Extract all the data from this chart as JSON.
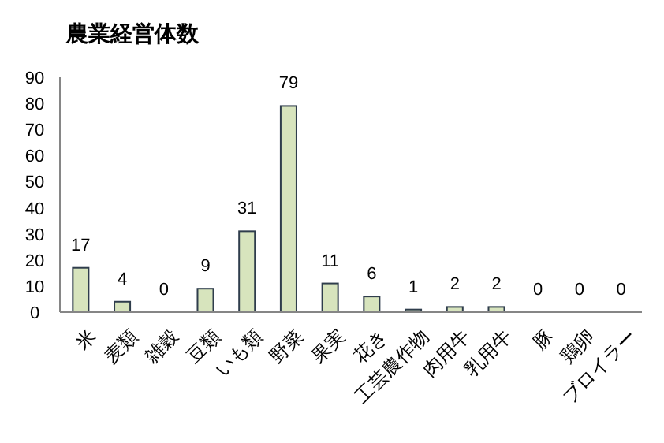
{
  "chart_data": {
    "type": "bar",
    "title": "農業経営体数",
    "categories": [
      "米",
      "麦類",
      "雑穀",
      "豆類",
      "いも類",
      "野菜",
      "果実",
      "花き",
      "工芸農作物",
      "肉用牛",
      "乳用牛",
      "豚",
      "鶏卵",
      "ブロイラー"
    ],
    "values": [
      17,
      4,
      0,
      9,
      31,
      79,
      11,
      6,
      1,
      2,
      2,
      0,
      0,
      0
    ],
    "color": "#d7e4bd",
    "ylim": [
      0,
      90
    ],
    "yticks": [
      0,
      10,
      20,
      30,
      40,
      50,
      60,
      70,
      80,
      90
    ],
    "data_labels": true,
    "grid": false
  }
}
